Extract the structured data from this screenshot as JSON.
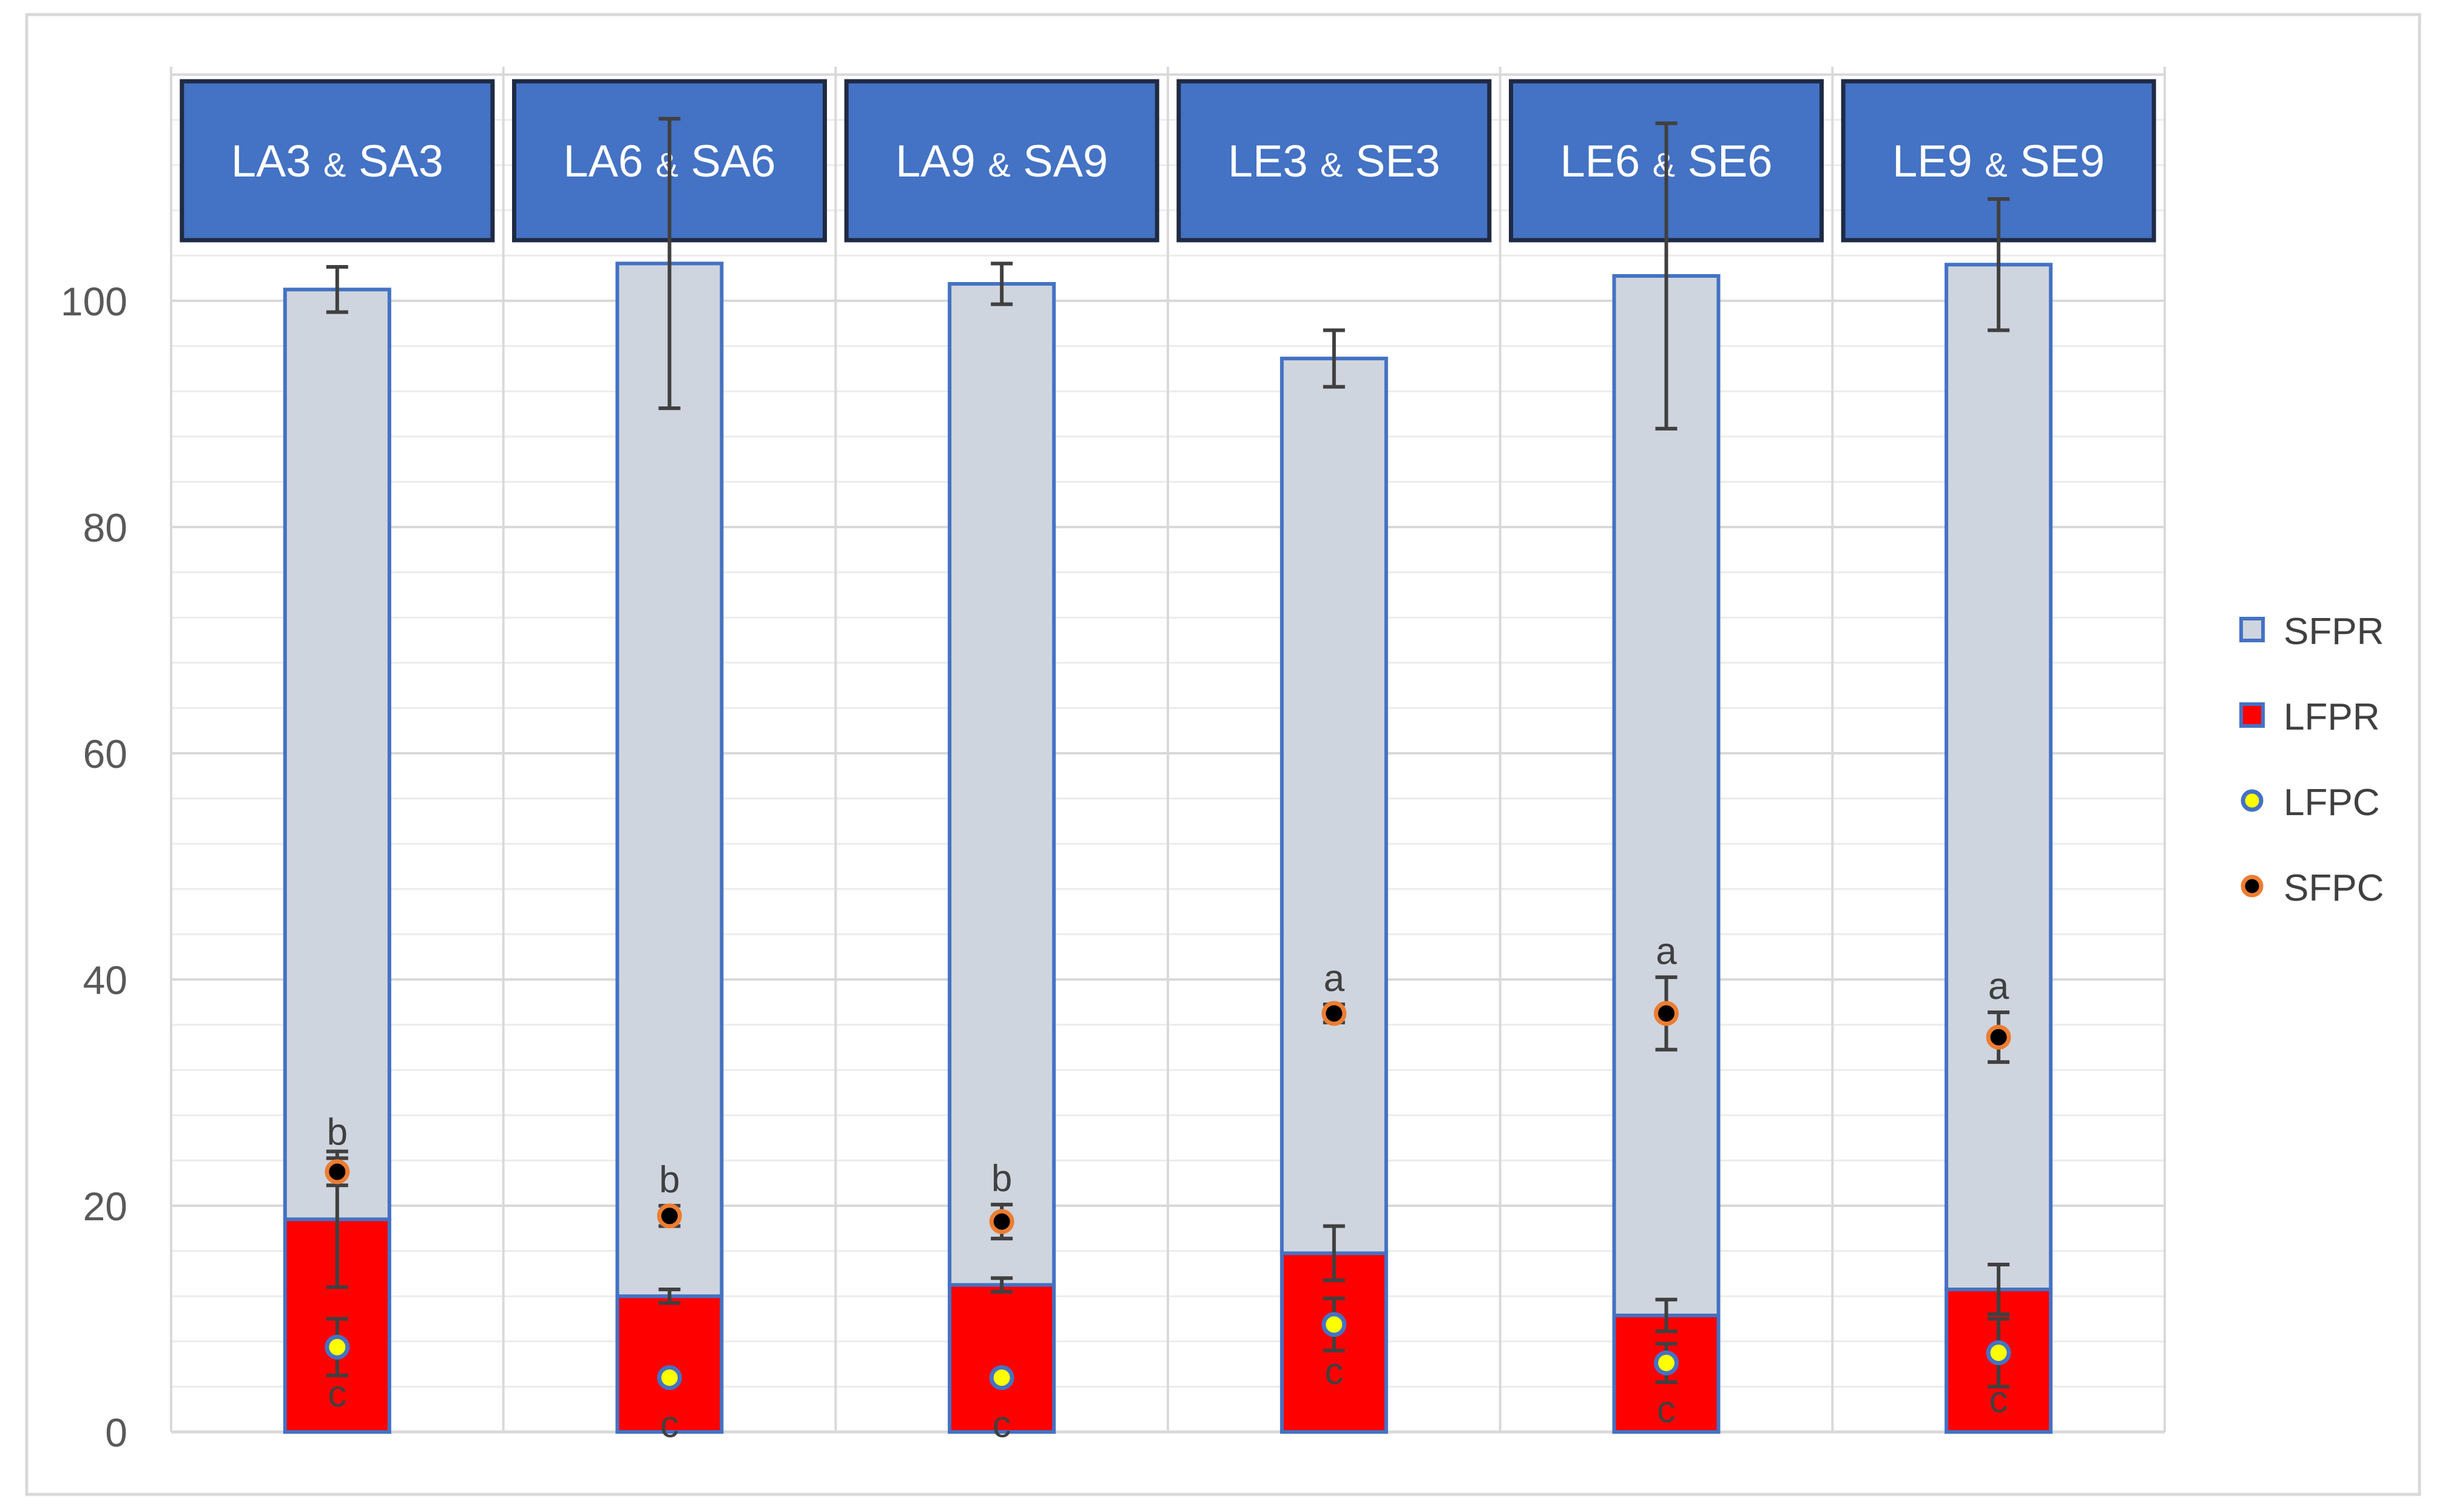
{
  "chart_data": {
    "type": "bar",
    "stacked": true,
    "grid": true,
    "legend_position": "right",
    "ylim": [
      0,
      100
    ],
    "yticks": [
      "0",
      "20",
      "40",
      "60",
      "80",
      "100"
    ],
    "categories": [
      "LA3 & SA3",
      "LA6 & SA6",
      "LA9 & SA9",
      "LE3 & SE3",
      "LE6 & SE6",
      "LE9 & SE9"
    ],
    "category_labels": [
      {
        "left": "LA3",
        "amp": "&",
        "right": "SA3"
      },
      {
        "left": "LA6",
        "amp": "&",
        "right": "SA6"
      },
      {
        "left": "LA9",
        "amp": "&",
        "right": "SA9"
      },
      {
        "left": "LE3",
        "amp": "&",
        "right": "SE3"
      },
      {
        "left": "LE6",
        "amp": "&",
        "right": "SE6"
      },
      {
        "left": "LE9",
        "amp": "&",
        "right": "SE9"
      }
    ],
    "colors": {
      "LFPR": "#ff0000",
      "SFPR": "#cfd5de",
      "bar_border": "#4472c4",
      "header_fill": "#4472c4",
      "header_border": "#1f2a44",
      "LFPC_fill": "#ffff00",
      "LFPC_stroke": "#4472c4",
      "SFPC_fill": "#000000",
      "SFPC_stroke": "#ed7d31",
      "error_bar": "#404040",
      "grid": "#d9d9d9"
    },
    "series": [
      {
        "name": "LFPR",
        "kind": "stacked-bar",
        "values": [
          18.8,
          12.0,
          13.0,
          15.8,
          10.3,
          12.6
        ],
        "error": [
          6.0,
          0.6,
          0.6,
          2.4,
          1.4,
          2.2
        ]
      },
      {
        "name": "SFPR",
        "kind": "stacked-bar",
        "values": [
          82.2,
          91.3,
          88.5,
          79.1,
          91.9,
          90.6
        ],
        "error": [
          2.0,
          12.8,
          1.8,
          2.5,
          13.5,
          5.8
        ]
      },
      {
        "name": "LFPC",
        "kind": "point",
        "values": [
          7.5,
          4.8,
          4.8,
          9.5,
          6.1,
          7.0
        ],
        "error": [
          2.5,
          0,
          0,
          2.3,
          1.7,
          3.0
        ],
        "letters": [
          "c",
          "c",
          "c",
          "c",
          "c",
          "c"
        ]
      },
      {
        "name": "SFPC",
        "kind": "point",
        "values": [
          23.0,
          19.1,
          18.6,
          37.0,
          37.0,
          34.9
        ],
        "error": [
          1.2,
          0.9,
          1.5,
          0.8,
          3.2,
          2.2
        ],
        "letters": [
          "b",
          "b",
          "b",
          "a",
          "a",
          "a"
        ]
      }
    ],
    "legend_order": [
      "SFPR",
      "LFPR",
      "LFPC",
      "SFPC"
    ]
  }
}
